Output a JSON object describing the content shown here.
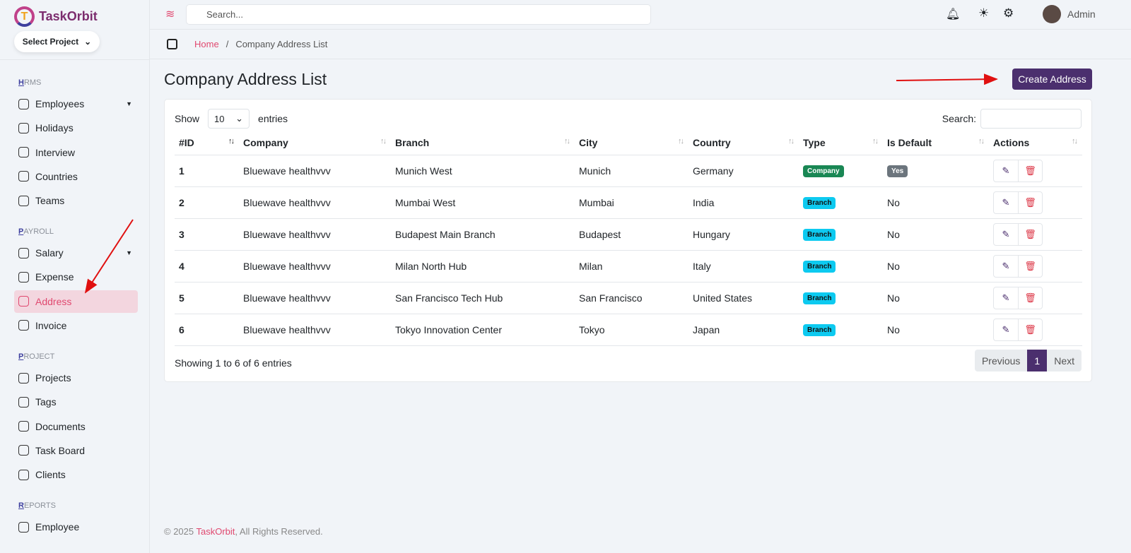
{
  "app": {
    "name": "TaskOrbit",
    "select_project": "Select Project"
  },
  "sidebar": {
    "sections": [
      {
        "title_first": "H",
        "title_rest": "RMS",
        "items": [
          {
            "label": "Employees",
            "caret": true
          },
          {
            "label": "Holidays"
          },
          {
            "label": "Interview"
          },
          {
            "label": "Countries"
          },
          {
            "label": "Teams"
          }
        ]
      },
      {
        "title_first": "P",
        "title_rest": "AYROLL",
        "items": [
          {
            "label": "Salary",
            "caret": true
          },
          {
            "label": "Expense"
          },
          {
            "label": "Address",
            "active": true
          },
          {
            "label": "Invoice"
          }
        ]
      },
      {
        "title_first": "P",
        "title_rest": "ROJECT",
        "items": [
          {
            "label": "Projects"
          },
          {
            "label": "Tags"
          },
          {
            "label": "Documents"
          },
          {
            "label": "Task Board"
          },
          {
            "label": "Clients"
          }
        ]
      },
      {
        "title_first": "R",
        "title_rest": "EPORTS",
        "items": [
          {
            "label": "Employee"
          }
        ]
      }
    ]
  },
  "topbar": {
    "search_placeholder": "Search...",
    "user": "Admin"
  },
  "breadcrumb": {
    "home": "Home",
    "sep": "/",
    "current": "Company Address List"
  },
  "page": {
    "title": "Company Address List",
    "create_button": "Create Address"
  },
  "table": {
    "show": "Show",
    "entries_value": "10",
    "entries": "entries",
    "search_label": "Search:",
    "columns": [
      "#ID",
      "Company",
      "Branch",
      "City",
      "Country",
      "Type",
      "Is Default",
      "Actions"
    ],
    "rows": [
      [
        "1",
        "Bluewave healthvvv",
        "Munich West",
        "Munich",
        "Germany",
        "Company",
        "Yes"
      ],
      [
        "2",
        "Bluewave healthvvv",
        "Mumbai West",
        "Mumbai",
        "India",
        "Branch",
        "No"
      ],
      [
        "3",
        "Bluewave healthvvv",
        "Budapest Main Branch",
        "Budapest",
        "Hungary",
        "Branch",
        "No"
      ],
      [
        "4",
        "Bluewave healthvvv",
        "Milan North Hub",
        "Milan",
        "Italy",
        "Branch",
        "No"
      ],
      [
        "5",
        "Bluewave healthvvv",
        "San Francisco Tech Hub",
        "San Francisco",
        "United States",
        "Branch",
        "No"
      ],
      [
        "6",
        "Bluewave healthvvv",
        "Tokyo Innovation Center",
        "Tokyo",
        "Japan",
        "Branch",
        "No"
      ]
    ],
    "info": "Showing 1 to 6 of 6 entries",
    "prev": "Previous",
    "page": "1",
    "next": "Next"
  },
  "colors": {
    "accent": "#4b2f6e",
    "pink": "#e0486f",
    "company_badge": "#198754",
    "branch_badge": "#0dcaf0",
    "yes_badge": "#6c757d"
  },
  "footer": {
    "prefix": "© 2025 ",
    "brand": "TaskOrbit",
    "suffix": ", All Rights Reserved."
  }
}
